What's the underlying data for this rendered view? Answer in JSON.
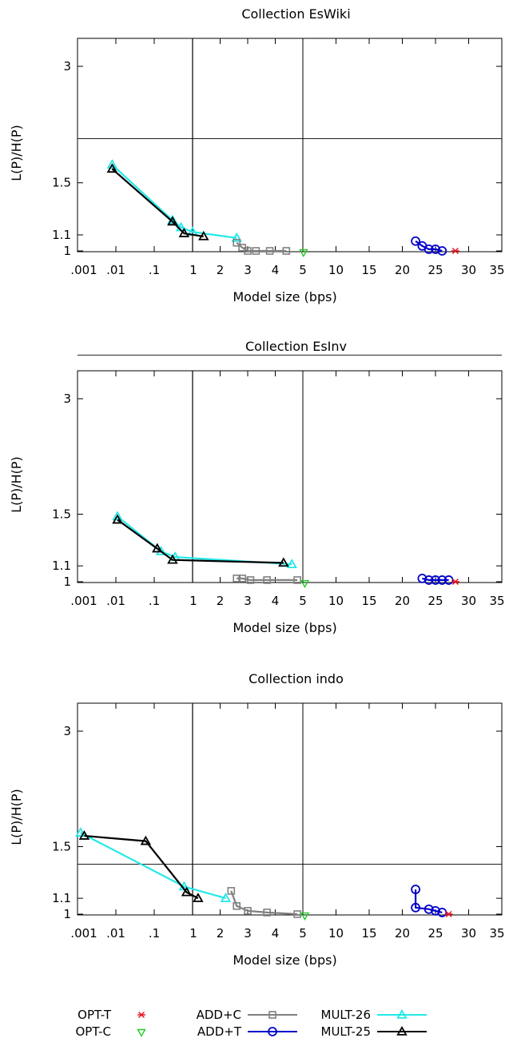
{
  "colors": {
    "opt_t": "#e8111e",
    "opt_c": "#22cc22",
    "add_c": "#808080",
    "add_t": "#0000cc",
    "mult_26": "#22e8e8",
    "mult_25": "#000000"
  },
  "legend": {
    "opt_t": "OPT-T",
    "opt_c": "OPT-C",
    "add_c": "ADD+C",
    "add_t": "ADD+T",
    "mult_26": "MULT-26",
    "mult_25": "MULT-25"
  },
  "chart_data": [
    {
      "type": "line",
      "title": "Collection EsWiki",
      "xlabel": "Model size (bps)",
      "ylabel": "L(P)/H(P)",
      "y_ticks": [
        "3",
        "1.5",
        "1.1",
        "1"
      ],
      "x_tick_labels_left": [
        ".001",
        ".01",
        ".1",
        "1"
      ],
      "x_tick_labels_mid": [
        "1",
        "2",
        "3",
        "4",
        "5"
      ],
      "x_tick_labels_right": [
        "5",
        "10",
        "15",
        "20",
        "25",
        "30",
        "35"
      ],
      "hline_y": 1.95,
      "series": [
        {
          "key": "mult_26",
          "x": [
            0.008,
            0.3,
            0.5,
            1.0,
            2.6
          ],
          "y": [
            1.67,
            1.2,
            1.15,
            1.12,
            1.08
          ]
        },
        {
          "key": "mult_25",
          "x": [
            0.008,
            0.3,
            0.6,
            1.4
          ],
          "y": [
            1.63,
            1.19,
            1.11,
            1.09
          ]
        },
        {
          "key": "add_c",
          "x": [
            2.6,
            2.8,
            3.0,
            3.3,
            3.8,
            4.4
          ],
          "y": [
            1.05,
            1.02,
            1.0,
            1.0,
            1.0,
            1.0
          ]
        },
        {
          "key": "add_t",
          "x": [
            22,
            23,
            24,
            25,
            26
          ],
          "y": [
            1.06,
            1.03,
            1.01,
            1.01,
            1.0
          ]
        },
        {
          "key": "opt_t",
          "x": [
            28
          ],
          "y": [
            1.0
          ]
        },
        {
          "key": "opt_c",
          "x": [
            5.1
          ],
          "y": [
            0.99
          ]
        }
      ]
    },
    {
      "type": "line",
      "title": "Collection EsInv",
      "xlabel": "Model size (bps)",
      "ylabel": "L(P)/H(P)",
      "y_ticks": [
        "3",
        "1.5",
        "1.1",
        "1"
      ],
      "x_tick_labels_left": [
        ".001",
        ".01",
        ".1",
        "1"
      ],
      "x_tick_labels_mid": [
        "1",
        "2",
        "3",
        "4",
        "5"
      ],
      "x_tick_labels_right": [
        "5",
        "10",
        "15",
        "20",
        "25",
        "30",
        "35"
      ],
      "hline_y": 3.9,
      "series": [
        {
          "key": "mult_26",
          "x": [
            0.011,
            0.15,
            0.35,
            4.6
          ],
          "y": [
            1.48,
            1.2,
            1.16,
            1.11
          ]
        },
        {
          "key": "mult_25",
          "x": [
            0.011,
            0.12,
            0.3,
            4.3
          ],
          "y": [
            1.45,
            1.22,
            1.14,
            1.12
          ]
        },
        {
          "key": "add_c",
          "x": [
            2.6,
            2.8,
            3.1,
            3.7,
            4.8
          ],
          "y": [
            1.02,
            1.02,
            1.01,
            1.01,
            1.01
          ]
        },
        {
          "key": "add_t",
          "x": [
            23,
            24,
            25,
            26,
            27
          ],
          "y": [
            1.02,
            1.01,
            1.01,
            1.01,
            1.01
          ]
        },
        {
          "key": "opt_t",
          "x": [
            28
          ],
          "y": [
            1.0
          ]
        },
        {
          "key": "opt_c",
          "x": [
            5.3
          ],
          "y": [
            0.99
          ]
        }
      ]
    },
    {
      "type": "line",
      "title": "Collection indo",
      "xlabel": "Model size (bps)",
      "ylabel": "L(P)/H(P)",
      "y_ticks": [
        "3",
        "1.5",
        "1.1",
        "1"
      ],
      "x_tick_labels_left": [
        ".001",
        ".01",
        ".1",
        "1"
      ],
      "x_tick_labels_mid": [
        "1",
        "2",
        "3",
        "4",
        "5"
      ],
      "x_tick_labels_right": [
        "5",
        "10",
        "15",
        "20",
        "25",
        "30",
        "35"
      ],
      "hline_y": 1.35,
      "series": [
        {
          "key": "mult_26",
          "x": [
            0.0012,
            0.6,
            2.2
          ],
          "y": [
            1.63,
            1.18,
            1.1
          ]
        },
        {
          "key": "mult_25",
          "x": [
            0.0015,
            0.06,
            0.7,
            1.2
          ],
          "y": [
            1.6,
            1.55,
            1.14,
            1.1
          ]
        },
        {
          "key": "add_c",
          "x": [
            2.4,
            2.6,
            3.0,
            3.7,
            4.8
          ],
          "y": [
            1.15,
            1.05,
            1.02,
            1.01,
            1.0
          ]
        },
        {
          "key": "add_t",
          "x": [
            22,
            22,
            24,
            25,
            26
          ],
          "y": [
            1.16,
            1.04,
            1.03,
            1.02,
            1.01
          ]
        },
        {
          "key": "opt_t",
          "x": [
            27
          ],
          "y": [
            1.0
          ]
        },
        {
          "key": "opt_c",
          "x": [
            5.3
          ],
          "y": [
            0.99
          ]
        }
      ]
    }
  ]
}
